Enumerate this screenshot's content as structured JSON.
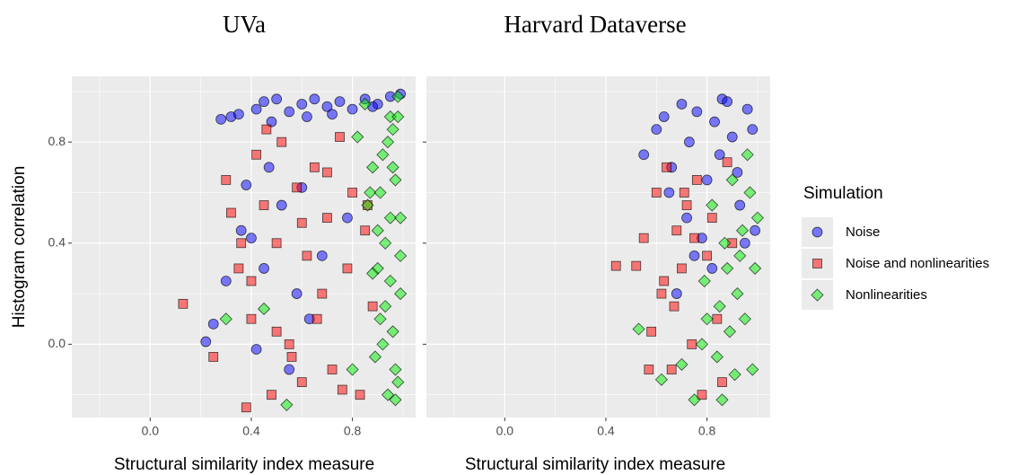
{
  "chart_data": [
    {
      "type": "scatter",
      "title": "UVa",
      "x_label": "Structural similarity index measure",
      "y_label": "Histogram correlation",
      "legend_title": "Simulation",
      "legend": "right",
      "grid": true,
      "xlim": [
        -0.31,
        1.05
      ],
      "ylim": [
        -0.29,
        1.06
      ],
      "xticks": [
        {
          "value": 0,
          "label": "0.0"
        },
        {
          "value": 0.4,
          "label": "0.4"
        },
        {
          "value": 0.8,
          "label": "0.8"
        }
      ],
      "yticks": [
        {
          "value": 0,
          "label": "0.0"
        },
        {
          "value": 0.4,
          "label": "0.4"
        },
        {
          "value": 0.8,
          "label": "0.8"
        }
      ],
      "series": [
        {
          "name": "Noise",
          "color": "#0000ff",
          "marker": "circle",
          "x": [
            0.28,
            0.32,
            0.35,
            0.42,
            0.45,
            0.5,
            0.55,
            0.6,
            0.65,
            0.7,
            0.75,
            0.8,
            0.85,
            0.9,
            0.95,
            0.99,
            0.48,
            0.62,
            0.72,
            0.88,
            0.38,
            0.4,
            0.45,
            0.52,
            0.58,
            0.63,
            0.3,
            0.25,
            0.42,
            0.55,
            0.68,
            0.36,
            0.47,
            0.78,
            0.22,
            0.6
          ],
          "values": [
            0.89,
            0.9,
            0.91,
            0.93,
            0.96,
            0.97,
            0.92,
            0.95,
            0.97,
            0.94,
            0.96,
            0.93,
            0.97,
            0.95,
            0.98,
            0.99,
            0.88,
            0.9,
            0.91,
            0.94,
            0.63,
            0.42,
            0.3,
            0.55,
            0.2,
            0.1,
            0.25,
            0.08,
            -0.02,
            -0.1,
            0.35,
            0.45,
            0.7,
            0.5,
            0.01,
            0.62
          ]
        },
        {
          "name": "Noise and nonlinearities",
          "color": "#ff0000",
          "marker": "square",
          "x": [
            0.13,
            0.25,
            0.3,
            0.32,
            0.35,
            0.38,
            0.4,
            0.42,
            0.45,
            0.48,
            0.5,
            0.52,
            0.55,
            0.58,
            0.6,
            0.62,
            0.65,
            0.68,
            0.7,
            0.72,
            0.75,
            0.78,
            0.8,
            0.83,
            0.85,
            0.88,
            0.4,
            0.5,
            0.6,
            0.7,
            0.36,
            0.46,
            0.56,
            0.66,
            0.76,
            0.86
          ],
          "values": [
            0.16,
            -0.05,
            0.65,
            0.52,
            0.3,
            -0.25,
            0.1,
            0.75,
            0.55,
            -0.2,
            0.4,
            0.8,
            0.0,
            0.62,
            -0.15,
            0.35,
            0.7,
            0.2,
            0.5,
            -0.1,
            0.82,
            0.3,
            0.6,
            -0.2,
            0.45,
            0.15,
            0.25,
            0.05,
            0.48,
            0.68,
            0.4,
            0.85,
            -0.05,
            0.1,
            -0.18,
            0.55
          ]
        },
        {
          "name": "Nonlinearities",
          "color": "#00ee00",
          "marker": "diamond",
          "x": [
            0.54,
            0.45,
            0.3,
            0.8,
            0.85,
            0.87,
            0.9,
            0.92,
            0.94,
            0.96,
            0.98,
            0.99,
            0.88,
            0.91,
            0.93,
            0.95,
            0.97,
            0.99,
            0.86,
            0.89,
            0.92,
            0.95,
            0.97,
            0.98,
            0.9,
            0.94,
            0.96,
            0.99,
            0.93,
            0.97,
            0.82,
            0.91,
            0.95,
            0.98,
            0.88,
            0.96
          ],
          "values": [
            -0.24,
            0.14,
            0.1,
            -0.1,
            0.95,
            0.6,
            0.3,
            0.0,
            -0.2,
            0.85,
            0.98,
            0.5,
            0.7,
            0.1,
            0.4,
            0.9,
            -0.1,
            0.2,
            0.55,
            -0.05,
            0.75,
            0.25,
            0.65,
            -0.15,
            0.45,
            0.8,
            0.05,
            0.35,
            0.15,
            -0.22,
            0.82,
            0.6,
            0.5,
            0.9,
            0.28,
            0.7
          ]
        }
      ]
    },
    {
      "type": "scatter",
      "title": "Harvard Dataverse",
      "x_label": "Structural similarity index measure",
      "grid": true,
      "xlim": [
        -0.31,
        1.05
      ],
      "ylim": [
        -0.29,
        1.06
      ],
      "xticks": [
        {
          "value": 0,
          "label": "0.0"
        },
        {
          "value": 0.4,
          "label": "0.4"
        },
        {
          "value": 0.8,
          "label": "0.8"
        }
      ],
      "yticks": [
        0,
        0.4,
        0.8
      ],
      "series": [
        {
          "name": "Noise",
          "color": "#0000ff",
          "marker": "circle",
          "x": [
            0.55,
            0.6,
            0.63,
            0.66,
            0.7,
            0.73,
            0.76,
            0.8,
            0.83,
            0.86,
            0.9,
            0.93,
            0.96,
            0.99,
            0.65,
            0.72,
            0.78,
            0.85,
            0.92,
            0.98,
            0.68,
            0.75,
            0.82,
            0.88,
            0.95
          ],
          "values": [
            0.75,
            0.85,
            0.9,
            0.7,
            0.95,
            0.8,
            0.92,
            0.65,
            0.88,
            0.97,
            0.82,
            0.55,
            0.93,
            0.45,
            0.6,
            0.5,
            0.42,
            0.75,
            0.68,
            0.85,
            0.2,
            0.35,
            0.3,
            0.96,
            0.4
          ]
        },
        {
          "name": "Noise and nonlinearities",
          "color": "#ff0000",
          "marker": "square",
          "x": [
            0.44,
            0.52,
            0.55,
            0.58,
            0.6,
            0.62,
            0.64,
            0.66,
            0.68,
            0.7,
            0.72,
            0.74,
            0.76,
            0.78,
            0.8,
            0.82,
            0.84,
            0.86,
            0.88,
            0.9,
            0.63,
            0.67,
            0.71,
            0.75,
            0.57
          ],
          "values": [
            0.31,
            0.31,
            0.42,
            0.05,
            0.6,
            0.2,
            0.7,
            -0.1,
            0.45,
            0.3,
            0.55,
            0.0,
            0.65,
            -0.2,
            0.35,
            0.5,
            0.1,
            -0.15,
            0.72,
            0.4,
            0.25,
            0.15,
            0.6,
            0.42,
            -0.1
          ]
        },
        {
          "name": "Nonlinearities",
          "color": "#00ee00",
          "marker": "diamond",
          "x": [
            0.53,
            0.62,
            0.7,
            0.75,
            0.78,
            0.8,
            0.82,
            0.84,
            0.86,
            0.88,
            0.9,
            0.92,
            0.94,
            0.96,
            0.98,
            1.0,
            0.85,
            0.89,
            0.93,
            0.97,
            0.79,
            0.87,
            0.91,
            0.95,
            0.99
          ],
          "values": [
            0.06,
            -0.14,
            -0.08,
            -0.22,
            0.0,
            0.1,
            0.55,
            -0.05,
            -0.22,
            0.3,
            0.65,
            0.2,
            0.45,
            0.75,
            -0.1,
            0.5,
            0.15,
            0.05,
            0.35,
            0.6,
            0.25,
            0.4,
            -0.12,
            0.1,
            0.3
          ]
        }
      ]
    }
  ]
}
